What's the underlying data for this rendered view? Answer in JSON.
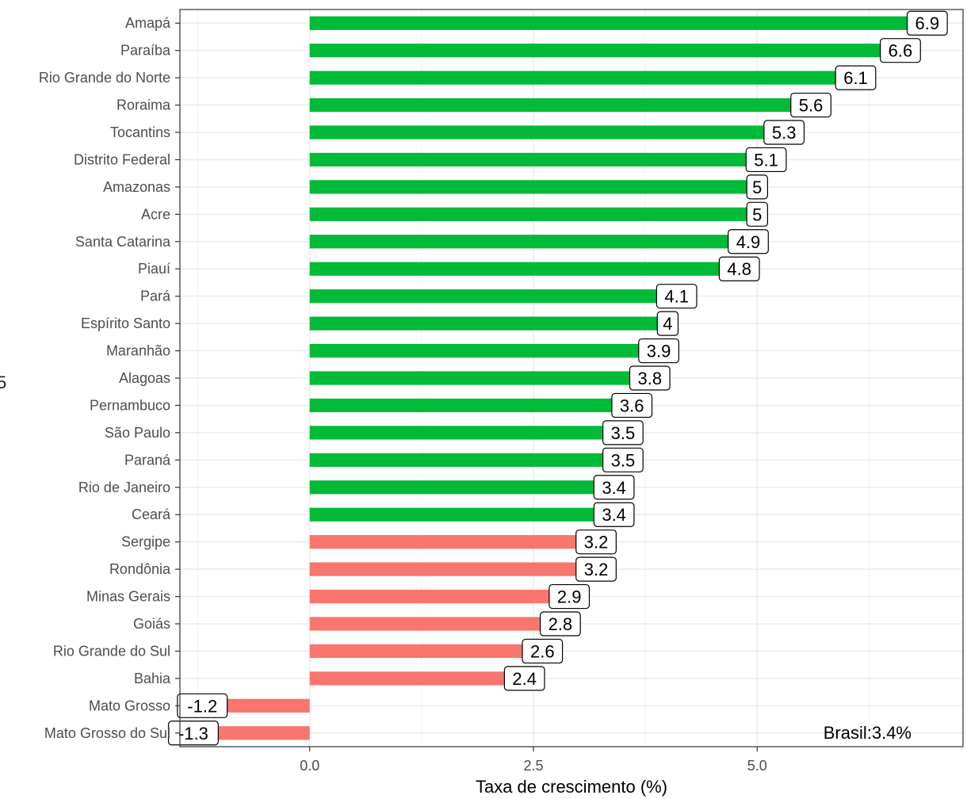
{
  "chart_data": {
    "type": "bar",
    "orientation": "horizontal",
    "title": "",
    "xlabel": "Taxa de crescimento (%)",
    "ylabel": "",
    "xlim": [
      -1.45,
      7.3
    ],
    "xticks": [
      0.0,
      2.5,
      5.0
    ],
    "xtick_labels": [
      "0.0",
      "2.5",
      "5.0"
    ],
    "grid": true,
    "legend": "none",
    "categories": [
      "Amapá",
      "Paraíba",
      "Rio Grande do Norte",
      "Roraima",
      "Tocantins",
      "Distrito Federal",
      "Amazonas",
      "Acre",
      "Santa Catarina",
      "Piauí",
      "Pará",
      "Espírito Santo",
      "Maranhão",
      "Alagoas",
      "Pernambuco",
      "São Paulo",
      "Paraná",
      "Rio de Janeiro",
      "Ceará",
      "Sergipe",
      "Rondônia",
      "Minas Gerais",
      "Goiás",
      "Rio Grande do Sul",
      "Bahia",
      "Mato Grosso",
      "Mato Grosso do Sul"
    ],
    "values": [
      6.9,
      6.6,
      6.1,
      5.6,
      5.3,
      5.1,
      5,
      5,
      4.9,
      4.8,
      4.1,
      4,
      3.9,
      3.8,
      3.6,
      3.5,
      3.5,
      3.4,
      3.4,
      3.2,
      3.2,
      2.9,
      2.8,
      2.6,
      2.4,
      -1.2,
      -1.3
    ],
    "value_labels": [
      "6.9",
      "6.6",
      "6.1",
      "5.6",
      "5.3",
      "5.1",
      "5",
      "5",
      "4.9",
      "4.8",
      "4.1",
      "4",
      "3.9",
      "3.8",
      "3.6",
      "3.5",
      "3.5",
      "3.4",
      "3.4",
      "3.2",
      "3.2",
      "2.9",
      "2.8",
      "2.6",
      "2.4",
      "-1.2",
      "-1.3"
    ],
    "above_reference": [
      true,
      true,
      true,
      true,
      true,
      true,
      true,
      true,
      true,
      true,
      true,
      true,
      true,
      true,
      true,
      true,
      true,
      true,
      true,
      false,
      false,
      false,
      false,
      false,
      false,
      false,
      false
    ],
    "colors": {
      "above": "#00BA38",
      "below": "#F8766D"
    },
    "annotation": "Brasil:3.4%",
    "edge_glyph": "5"
  }
}
